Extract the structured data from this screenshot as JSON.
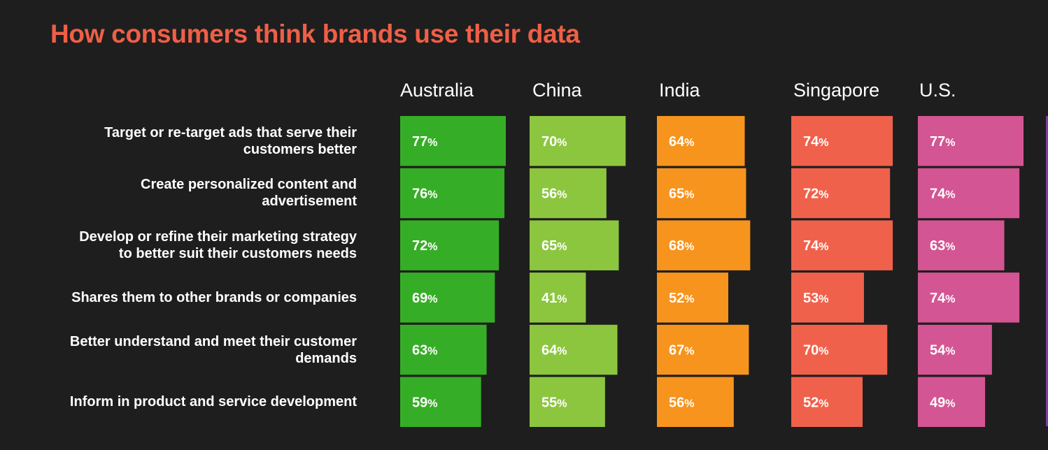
{
  "title": "How consumers think brands use their data",
  "chart_data": {
    "type": "bar",
    "title": "How consumers think brands use their data",
    "categories": [
      "Target or re-target ads that serve their customers better",
      "Create personalized content and advertisement",
      "Develop or refine their marketing strategy to better suit their customers needs",
      "Shares them to other brands or companies",
      "Better understand and meet their customer demands",
      "Inform in product and service development"
    ],
    "category_lines": [
      [
        "Target or re-target ads that serve their",
        "customers better"
      ],
      [
        "Create personalized content and",
        "advertisement"
      ],
      [
        "Develop or refine their marketing strategy",
        "to better suit their customers needs"
      ],
      [
        "Shares them to other brands or companies"
      ],
      [
        "Better understand and meet their customer",
        "demands"
      ],
      [
        "Inform in product and service development"
      ]
    ],
    "series": [
      {
        "name": "Australia",
        "color": "#36ad26",
        "values": [
          77,
          76,
          72,
          69,
          63,
          59
        ]
      },
      {
        "name": "China",
        "color": "#8cc63f",
        "values": [
          70,
          56,
          65,
          41,
          64,
          55
        ]
      },
      {
        "name": "India",
        "color": "#f7941e",
        "values": [
          64,
          65,
          68,
          52,
          67,
          56
        ]
      },
      {
        "name": "Singapore",
        "color": "#f0614b",
        "values": [
          74,
          72,
          74,
          53,
          70,
          52
        ]
      },
      {
        "name": "U.S.",
        "color": "#d45593",
        "values": [
          77,
          74,
          63,
          74,
          54,
          49
        ]
      }
    ],
    "value_suffix": "%"
  }
}
